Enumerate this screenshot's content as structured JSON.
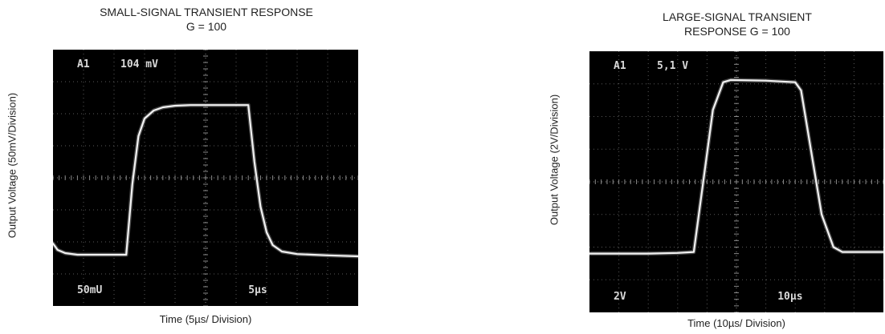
{
  "chart_data": [
    {
      "type": "line",
      "title_lines": [
        "SMALL-SIGNAL TRANSIENT RESPONSE",
        "G = 100"
      ],
      "xlabel": "Time (5µs/ Division)",
      "ylabel": "Output Voltage (50mV/Division)",
      "readout_top": [
        "A1",
        "104 mV"
      ],
      "readout_bottom_left": "50mU",
      "readout_bottom_right": "5µs",
      "divisions": {
        "x": 10,
        "y": 8
      },
      "x_units": "divisions",
      "y_units": "divisions",
      "series": [
        {
          "x": [
            0,
            0.15,
            0.4,
            0.8,
            1.5,
            2.4,
            2.6,
            2.8,
            3.0,
            3.3,
            3.6,
            4.0,
            4.5,
            5.0,
            5.5,
            6.0,
            6.4,
            6.6,
            6.8,
            7.0,
            7.2,
            7.5,
            8.0,
            8.5,
            9.0,
            10.0
          ],
          "y": [
            1.95,
            1.75,
            1.65,
            1.6,
            1.6,
            1.6,
            3.8,
            5.3,
            5.85,
            6.1,
            6.2,
            6.25,
            6.27,
            6.27,
            6.27,
            6.27,
            6.27,
            4.5,
            3.1,
            2.3,
            1.9,
            1.7,
            1.62,
            1.6,
            1.58,
            1.55
          ]
        }
      ]
    },
    {
      "type": "line",
      "title_lines": [
        "LARGE-SIGNAL TRANSIENT",
        "RESPONSE G = 100"
      ],
      "xlabel": "Time (10µs/ Division)",
      "ylabel": "Output Voltage (2V/Division)",
      "readout_top": [
        "A1",
        "5,1 V"
      ],
      "readout_bottom_left": "2V",
      "readout_bottom_right": "10µs",
      "divisions": {
        "x": 10,
        "y": 8
      },
      "x_units": "divisions",
      "y_units": "divisions",
      "series": [
        {
          "x": [
            0,
            1.0,
            2.0,
            3.0,
            3.55,
            4.2,
            4.55,
            4.8,
            6.0,
            7.0,
            7.2,
            7.9,
            8.3,
            8.6,
            9.0,
            10.0
          ],
          "y": [
            1.8,
            1.8,
            1.8,
            1.82,
            1.85,
            6.2,
            7.05,
            7.12,
            7.1,
            7.05,
            6.8,
            3.0,
            2.0,
            1.85,
            1.85,
            1.85
          ]
        }
      ]
    }
  ]
}
